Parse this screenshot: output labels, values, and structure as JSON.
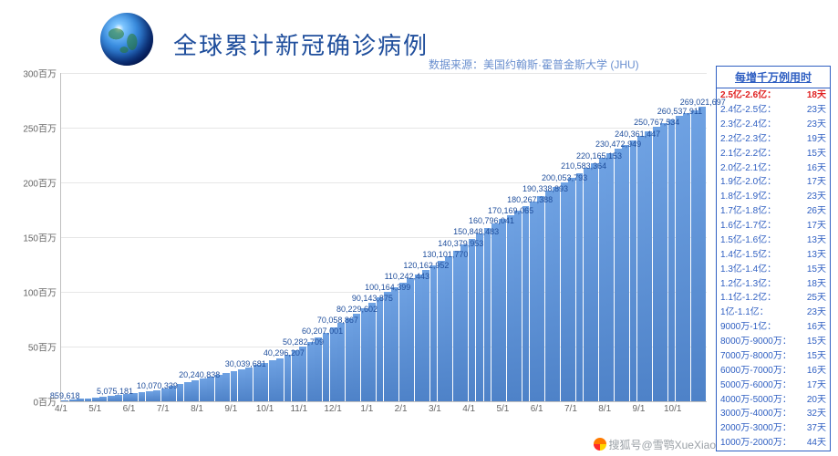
{
  "title": "全球累计新冠确诊病例",
  "source": "数据来源：美国约翰斯·霍普金斯大学 (JHU)",
  "watermark": "搜狐号@雪鹗XueXiao",
  "chart": {
    "type": "bar",
    "bar_color_top": "#6fa2e3",
    "bar_color_bottom": "#4e82c8",
    "grid_color": "#e6e6e6",
    "axis_color": "#bfbfbf",
    "label_color": "#1f4e9c",
    "y": {
      "max": 300,
      "step": 50,
      "unit": "百万",
      "ticks": [
        "0百万",
        "50百万",
        "100百万",
        "150百万",
        "200百万",
        "250百万",
        "300百万"
      ]
    },
    "xticks": [
      "4/1",
      "5/1",
      "6/1",
      "7/1",
      "8/1",
      "9/1",
      "10/1",
      "11/1",
      "12/1",
      "1/1",
      "2/1",
      "3/1",
      "4/1",
      "5/1",
      "6/1",
      "7/1",
      "8/1",
      "9/1",
      "10/1",
      ""
    ],
    "milestones": [
      {
        "label": "859,618",
        "value": 0.86,
        "x": 0.5
      },
      {
        "label": "5,075,181",
        "value": 5.08,
        "x": 7
      },
      {
        "label": "10,070,339",
        "value": 10.07,
        "x": 12.5
      },
      {
        "label": "20,240,838",
        "value": 20.24,
        "x": 18
      },
      {
        "label": "30,039,681",
        "value": 30.04,
        "x": 24
      },
      {
        "label": "40,296,207",
        "value": 40.3,
        "x": 29
      },
      {
        "label": "50,282,709",
        "value": 50.28,
        "x": 31.5
      },
      {
        "label": "60,207,001",
        "value": 60.21,
        "x": 34
      },
      {
        "label": "70,058,867",
        "value": 70.06,
        "x": 36
      },
      {
        "label": "80,229,602",
        "value": 80.23,
        "x": 38.5
      },
      {
        "label": "90,143,875",
        "value": 90.14,
        "x": 40.5
      },
      {
        "label": "100,164,399",
        "value": 100.16,
        "x": 42.5
      },
      {
        "label": "110,242,443",
        "value": 110.24,
        "x": 45
      },
      {
        "label": "120,162,952",
        "value": 120.16,
        "x": 47.5
      },
      {
        "label": "130,101,770",
        "value": 130.1,
        "x": 50
      },
      {
        "label": "140,379,953",
        "value": 140.38,
        "x": 52
      },
      {
        "label": "150,848,483",
        "value": 150.85,
        "x": 54
      },
      {
        "label": "160,796,041",
        "value": 160.8,
        "x": 56
      },
      {
        "label": "170,169,065",
        "value": 170.17,
        "x": 58.5
      },
      {
        "label": "180,267,388",
        "value": 180.27,
        "x": 61
      },
      {
        "label": "190,338,893",
        "value": 190.34,
        "x": 63
      },
      {
        "label": "200,053,793",
        "value": 200.05,
        "x": 65.5
      },
      {
        "label": "210,583,364",
        "value": 210.58,
        "x": 68
      },
      {
        "label": "220,165,153",
        "value": 220.17,
        "x": 70
      },
      {
        "label": "230,472,949",
        "value": 230.47,
        "x": 72.5
      },
      {
        "label": "240,361,447",
        "value": 240.36,
        "x": 75
      },
      {
        "label": "250,767,534",
        "value": 250.77,
        "x": 77.5
      },
      {
        "label": "260,537,911",
        "value": 260.54,
        "x": 80.5
      },
      {
        "label": "269,021,697",
        "value": 269.02,
        "x": 83.5
      }
    ],
    "first_value": 0.86,
    "last_value": 269.02,
    "bar_count": 84
  },
  "panel": {
    "header": "每增千万例用时",
    "rows": [
      {
        "range": "2.5亿-2.6亿：",
        "days": "18天",
        "hl": true
      },
      {
        "range": "2.4亿-2.5亿：",
        "days": "23天"
      },
      {
        "range": "2.3亿-2.4亿：",
        "days": "23天"
      },
      {
        "range": "2.2亿-2.3亿：",
        "days": "19天"
      },
      {
        "range": "2.1亿-2.2亿：",
        "days": "15天"
      },
      {
        "range": "2.0亿-2.1亿：",
        "days": "16天"
      },
      {
        "range": "1.9亿-2.0亿：",
        "days": "17天"
      },
      {
        "range": "1.8亿-1.9亿：",
        "days": "23天"
      },
      {
        "range": "1.7亿-1.8亿：",
        "days": "26天"
      },
      {
        "range": "1.6亿-1.7亿：",
        "days": "17天"
      },
      {
        "range": "1.5亿-1.6亿：",
        "days": "13天"
      },
      {
        "range": "1.4亿-1.5亿：",
        "days": "13天"
      },
      {
        "range": "1.3亿-1.4亿：",
        "days": "15天"
      },
      {
        "range": "1.2亿-1.3亿：",
        "days": "18天"
      },
      {
        "range": "1.1亿-1.2亿：",
        "days": "25天"
      },
      {
        "range": "1亿-1.1亿：",
        "days": "23天"
      },
      {
        "range": "9000万-1亿：",
        "days": "16天"
      },
      {
        "range": "8000万-9000万：",
        "days": "15天"
      },
      {
        "range": "7000万-8000万：",
        "days": "15天"
      },
      {
        "range": "6000万-7000万：",
        "days": "16天"
      },
      {
        "range": "5000万-6000万：",
        "days": "17天"
      },
      {
        "range": "4000万-5000万：",
        "days": "20天"
      },
      {
        "range": "3000万-4000万：",
        "days": "32天"
      },
      {
        "range": "2000万-3000万：",
        "days": "37天"
      },
      {
        "range": "1000万-2000万：",
        "days": "44天"
      }
    ]
  }
}
